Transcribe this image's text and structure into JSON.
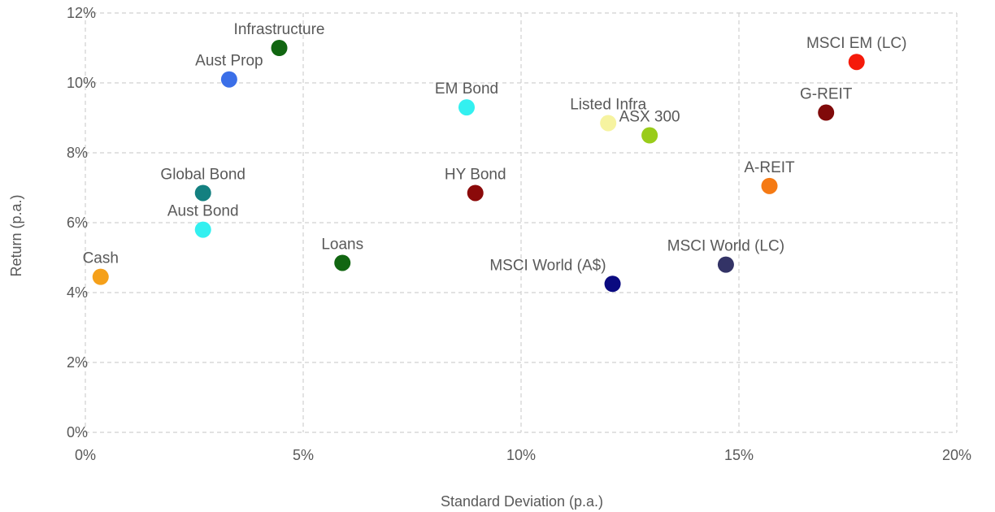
{
  "chart_data": {
    "type": "scatter",
    "title": "",
    "xlabel": "Standard Deviation (p.a.)",
    "ylabel": "Return (p.a.)",
    "xlim": [
      0,
      20
    ],
    "ylim": [
      0,
      12
    ],
    "x_ticks": [
      0,
      5,
      10,
      15,
      20
    ],
    "x_tick_labels": [
      "0%",
      "5%",
      "10%",
      "15%",
      "20%"
    ],
    "y_ticks": [
      0,
      2,
      4,
      6,
      8,
      10,
      12
    ],
    "y_tick_labels": [
      "0%",
      "2%",
      "4%",
      "6%",
      "8%",
      "10%",
      "12%"
    ],
    "grid": true,
    "legend": "none",
    "points": [
      {
        "label": "Cash",
        "x": 0.35,
        "y": 4.45,
        "color": "#f5a01a",
        "label_pos": "above"
      },
      {
        "label": "Aust Bond",
        "x": 2.7,
        "y": 5.8,
        "color": "#33f0f0",
        "label_pos": "above"
      },
      {
        "label": "Global Bond",
        "x": 2.7,
        "y": 6.85,
        "color": "#138080",
        "label_pos": "above"
      },
      {
        "label": "Aust Prop",
        "x": 3.3,
        "y": 10.1,
        "color": "#3b6fe8",
        "label_pos": "above"
      },
      {
        "label": "Infrastructure",
        "x": 4.45,
        "y": 11.0,
        "color": "#116611",
        "label_pos": "above"
      },
      {
        "label": "Loans",
        "x": 5.9,
        "y": 4.85,
        "color": "#116611",
        "label_pos": "above"
      },
      {
        "label": "EM Bond",
        "x": 8.75,
        "y": 9.3,
        "color": "#33f0f0",
        "label_pos": "above"
      },
      {
        "label": "HY Bond",
        "x": 8.95,
        "y": 6.85,
        "color": "#8b0a0a",
        "label_pos": "above"
      },
      {
        "label": "Listed Infra",
        "x": 12.0,
        "y": 8.85,
        "color": "#f6f3a0",
        "label_pos": "above"
      },
      {
        "label": "ASX 300",
        "x": 12.95,
        "y": 8.5,
        "color": "#99cc1a",
        "label_pos": "above"
      },
      {
        "label": "MSCI World (A$)",
        "x": 12.1,
        "y": 4.25,
        "color": "#0a0a80",
        "label_pos": "above-left"
      },
      {
        "label": "MSCI World (LC)",
        "x": 14.7,
        "y": 4.8,
        "color": "#333366",
        "label_pos": "above"
      },
      {
        "label": "A-REIT",
        "x": 15.7,
        "y": 7.05,
        "color": "#f57a14",
        "label_pos": "above"
      },
      {
        "label": "G-REIT",
        "x": 17.0,
        "y": 9.15,
        "color": "#800a0a",
        "label_pos": "above"
      },
      {
        "label": "MSCI EM (LC)",
        "x": 17.7,
        "y": 10.6,
        "color": "#f51a0a",
        "label_pos": "above"
      }
    ]
  }
}
